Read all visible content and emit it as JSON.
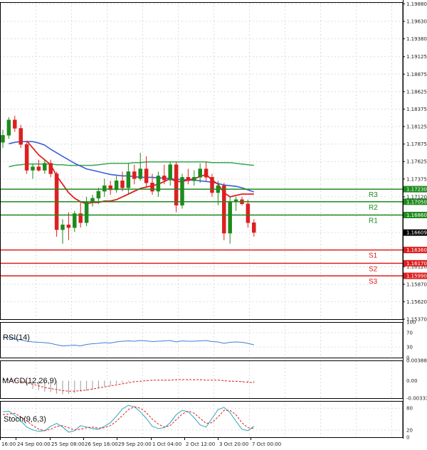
{
  "colors": {
    "grid": "#dcdcdc",
    "axis": "#000000",
    "bull": "#1e8a1e",
    "bear": "#dd1f1f",
    "ma_fast": "#e02020",
    "ma_mid": "#3a5fd8",
    "ma_slow": "#35a84c",
    "resistance": "#1e8a1e",
    "support": "#dd1f1f",
    "current": "#000000",
    "rsi": "#3a7fd8",
    "macd_hist": "#999999",
    "macd_signal": "#dd1f1f",
    "stoch_main": "#2aa7b8",
    "stoch_signal": "#dd1f1f"
  },
  "chart_data": [
    {
      "type": "candlestick",
      "symbol": "EURUSD",
      "ylim": [
        1.1537,
        1.19905
      ],
      "yticks": [
        "1.19880",
        "1.19630",
        "1.19380",
        "1.19125",
        "1.18875",
        "1.18625",
        "1.18375",
        "1.18125",
        "1.17875",
        "1.17625",
        "1.17375",
        "1.17120",
        "1.16870",
        "1.16610",
        "1.16360",
        "1.16120",
        "1.15870",
        "1.15620",
        "1.15370"
      ],
      "x_labels": [
        "16:00",
        "24 Sep 00:00",
        "25 Sep 08:00",
        "26 Sep 16:00",
        "29 Sep 20:00",
        "1 Oct 04:00",
        "2 Oct 12:00",
        "3 Oct 20:00",
        "7 Oct 00:00"
      ],
      "candles": [
        {
          "o": 1.179,
          "h": 1.1808,
          "l": 1.1782,
          "c": 1.18
        },
        {
          "o": 1.18,
          "h": 1.1826,
          "l": 1.1795,
          "c": 1.1822
        },
        {
          "o": 1.1822,
          "h": 1.1828,
          "l": 1.1805,
          "c": 1.181
        },
        {
          "o": 1.181,
          "h": 1.1815,
          "l": 1.1782,
          "c": 1.1787
        },
        {
          "o": 1.1787,
          "h": 1.179,
          "l": 1.1745,
          "c": 1.175
        },
        {
          "o": 1.175,
          "h": 1.176,
          "l": 1.1738,
          "c": 1.1755
        },
        {
          "o": 1.1755,
          "h": 1.1765,
          "l": 1.1748,
          "c": 1.175
        },
        {
          "o": 1.175,
          "h": 1.1766,
          "l": 1.1745,
          "c": 1.176
        },
        {
          "o": 1.176,
          "h": 1.1765,
          "l": 1.174,
          "c": 1.1745
        },
        {
          "o": 1.1745,
          "h": 1.1748,
          "l": 1.1655,
          "c": 1.1665
        },
        {
          "o": 1.1665,
          "h": 1.168,
          "l": 1.1645,
          "c": 1.1672
        },
        {
          "o": 1.1672,
          "h": 1.169,
          "l": 1.165,
          "c": 1.1668
        },
        {
          "o": 1.1668,
          "h": 1.1692,
          "l": 1.1662,
          "c": 1.1688
        },
        {
          "o": 1.1688,
          "h": 1.1705,
          "l": 1.1668,
          "c": 1.1675
        },
        {
          "o": 1.1675,
          "h": 1.1712,
          "l": 1.167,
          "c": 1.1705
        },
        {
          "o": 1.1705,
          "h": 1.1715,
          "l": 1.1698,
          "c": 1.171
        },
        {
          "o": 1.171,
          "h": 1.1725,
          "l": 1.1702,
          "c": 1.172
        },
        {
          "o": 1.172,
          "h": 1.1738,
          "l": 1.1712,
          "c": 1.1728
        },
        {
          "o": 1.1728,
          "h": 1.1735,
          "l": 1.1715,
          "c": 1.1722
        },
        {
          "o": 1.1722,
          "h": 1.1742,
          "l": 1.1718,
          "c": 1.1735
        },
        {
          "o": 1.1735,
          "h": 1.1748,
          "l": 1.172,
          "c": 1.1725
        },
        {
          "o": 1.1725,
          "h": 1.176,
          "l": 1.1715,
          "c": 1.1748
        },
        {
          "o": 1.1748,
          "h": 1.1758,
          "l": 1.173,
          "c": 1.1738
        },
        {
          "o": 1.1738,
          "h": 1.1775,
          "l": 1.1735,
          "c": 1.1752
        },
        {
          "o": 1.1752,
          "h": 1.177,
          "l": 1.1725,
          "c": 1.1732
        },
        {
          "o": 1.1732,
          "h": 1.1745,
          "l": 1.1715,
          "c": 1.172
        },
        {
          "o": 1.172,
          "h": 1.1748,
          "l": 1.1712,
          "c": 1.1742
        },
        {
          "o": 1.1742,
          "h": 1.1758,
          "l": 1.173,
          "c": 1.1736
        },
        {
          "o": 1.1736,
          "h": 1.1762,
          "l": 1.1728,
          "c": 1.1758
        },
        {
          "o": 1.1758,
          "h": 1.1762,
          "l": 1.169,
          "c": 1.17
        },
        {
          "o": 1.17,
          "h": 1.1745,
          "l": 1.1695,
          "c": 1.174
        },
        {
          "o": 1.174,
          "h": 1.1752,
          "l": 1.173,
          "c": 1.1735
        },
        {
          "o": 1.1735,
          "h": 1.175,
          "l": 1.1728,
          "c": 1.174
        },
        {
          "o": 1.174,
          "h": 1.176,
          "l": 1.1732,
          "c": 1.1752
        },
        {
          "o": 1.1752,
          "h": 1.1762,
          "l": 1.1735,
          "c": 1.174
        },
        {
          "o": 1.174,
          "h": 1.1745,
          "l": 1.1712,
          "c": 1.1718
        },
        {
          "o": 1.1718,
          "h": 1.1735,
          "l": 1.17,
          "c": 1.1728
        },
        {
          "o": 1.1728,
          "h": 1.1732,
          "l": 1.165,
          "c": 1.166
        },
        {
          "o": 1.166,
          "h": 1.1712,
          "l": 1.1645,
          "c": 1.1705
        },
        {
          "o": 1.1705,
          "h": 1.1712,
          "l": 1.1692,
          "c": 1.1708
        },
        {
          "o": 1.1708,
          "h": 1.1712,
          "l": 1.17,
          "c": 1.1702
        },
        {
          "o": 1.1702,
          "h": 1.1708,
          "l": 1.1668,
          "c": 1.1675
        },
        {
          "o": 1.1675,
          "h": 1.168,
          "l": 1.1655,
          "c": 1.1661
        }
      ],
      "ma_fast": [
        null,
        null,
        null,
        null,
        1.1792,
        1.1782,
        1.1772,
        1.1765,
        1.1758,
        1.1742,
        1.173,
        1.1718,
        1.171,
        1.1705,
        1.1702,
        1.1704,
        1.1704,
        1.1706,
        1.1706,
        1.1708,
        1.1712,
        1.1716,
        1.172,
        1.1724,
        1.1726,
        1.1728,
        1.173,
        1.1734,
        1.1738,
        1.1734,
        1.1734,
        1.1736,
        1.1738,
        1.1741,
        1.1744,
        1.1736,
        1.173,
        1.1718,
        1.1712,
        1.1714,
        1.1716,
        1.1716,
        1.1716
      ],
      "ma_mid": [
        null,
        1.1788,
        1.179,
        1.1791,
        1.1791,
        1.1791,
        1.1789,
        1.1786,
        1.178,
        1.1775,
        1.177,
        1.1765,
        1.176,
        1.1756,
        1.1752,
        1.175,
        1.1748,
        1.1746,
        1.1744,
        1.1743,
        1.1742,
        1.1742,
        1.1741,
        1.174,
        1.174,
        1.174,
        1.1739,
        1.1739,
        1.1738,
        1.1737,
        1.1737,
        1.1736,
        1.1736,
        1.1735,
        1.1734,
        1.1733,
        1.1731,
        1.1729,
        1.1728,
        1.1727,
        1.1725,
        1.1722,
        1.1719
      ],
      "ma_slow": [
        null,
        1.1755,
        1.1757,
        1.1758,
        1.1759,
        1.1759,
        1.1759,
        1.1759,
        1.1759,
        1.1758,
        1.1758,
        1.1757,
        1.1757,
        1.1757,
        1.1757,
        1.1757,
        1.1758,
        1.1759,
        1.176,
        1.176,
        1.176,
        1.176,
        1.1761,
        1.1761,
        1.1762,
        1.1762,
        1.1762,
        1.1762,
        1.1762,
        1.1762,
        1.1762,
        1.1762,
        1.1762,
        1.1762,
        1.1762,
        1.1761,
        1.1761,
        1.1761,
        1.1761,
        1.176,
        1.1759,
        1.1758,
        1.1757
      ],
      "current_price": "1.16609",
      "levels": [
        {
          "name": "R3",
          "value": 1.1723,
          "label": "1.17230",
          "kind": "resistance"
        },
        {
          "name": "R2",
          "value": 1.1705,
          "label": "1.17050",
          "kind": "resistance"
        },
        {
          "name": "R1",
          "value": 1.1686,
          "label": "1.16860",
          "kind": "resistance"
        },
        {
          "name": "S1",
          "value": 1.1636,
          "label": "1.16360",
          "kind": "support"
        },
        {
          "name": "S2",
          "value": 1.1617,
          "label": "1.16170",
          "kind": "support"
        },
        {
          "name": "S3",
          "value": 1.1599,
          "label": "1.15990",
          "kind": "support"
        }
      ]
    },
    {
      "type": "line",
      "title": "RSI(14)",
      "ylim": [
        0,
        100
      ],
      "yticks": [
        "100",
        "70",
        "30",
        "0"
      ],
      "values": [
        58,
        57,
        52,
        50,
        46,
        44,
        43,
        42,
        40,
        36,
        33,
        34,
        35,
        33,
        37,
        39,
        40,
        42,
        41,
        44,
        46,
        47,
        46,
        48,
        47,
        45,
        46,
        47,
        48,
        44,
        47,
        46,
        46,
        47,
        48,
        45,
        44,
        40,
        43,
        44,
        43,
        40,
        36
      ]
    },
    {
      "type": "histogram",
      "title": "MACD(12,26,9)",
      "ylim": [
        -0.003335,
        0.00388
      ],
      "yticks": [
        "0.00388",
        "0.00",
        "-0.003335"
      ],
      "histogram": [
        0,
        0.0001,
        0.0001,
        -0.0004,
        -0.001,
        -0.0016,
        -0.0018,
        -0.0021,
        -0.0022,
        -0.0025,
        -0.0026,
        -0.0025,
        -0.0024,
        -0.0021,
        -0.0019,
        -0.0017,
        -0.0014,
        -0.0011,
        -0.0009,
        -0.0006,
        -0.0004,
        -0.0002,
        -0.0001,
        0,
        0.0001,
        0.0001,
        0.0001,
        0.0001,
        0.0001,
        0.0001,
        0.0001,
        0.0001,
        0.0001,
        0.0001,
        0.0,
        0.0,
        0.0,
        -0.0001,
        -0.0002,
        -0.0002,
        -0.0002,
        -0.0003,
        -0.0004
      ],
      "signal": [
        0.0002,
        0.0002,
        0.0001,
        -0.0001,
        -0.0004,
        -0.0007,
        -0.001,
        -0.0013,
        -0.0015,
        -0.0017,
        -0.0019,
        -0.002,
        -0.002,
        -0.0019,
        -0.0018,
        -0.0016,
        -0.0014,
        -0.0012,
        -0.001,
        -0.0008,
        -0.0006,
        -0.0004,
        -0.0002,
        -0.0001,
        0.0,
        0.0001,
        0.0001,
        0.0001,
        0.0001,
        0.0002,
        0.0002,
        0.0002,
        0.0002,
        0.0002,
        0.0001,
        0.0001,
        0.0001,
        0.0,
        -0.0001,
        -0.0001,
        -0.0002,
        -0.0003,
        -0.0004
      ]
    },
    {
      "type": "line",
      "title": "Stoch(9,6,3)",
      "ylim": [
        0,
        100
      ],
      "yticks": [
        "80",
        "20",
        "0"
      ],
      "main": [
        70,
        72,
        60,
        45,
        28,
        20,
        16,
        18,
        30,
        38,
        28,
        14,
        18,
        32,
        28,
        24,
        22,
        30,
        40,
        58,
        78,
        88,
        84,
        70,
        52,
        30,
        24,
        26,
        40,
        62,
        74,
        70,
        54,
        34,
        28,
        52,
        76,
        82,
        68,
        44,
        22,
        18,
        30
      ],
      "signal": [
        62,
        64,
        66,
        56,
        45,
        32,
        22,
        18,
        22,
        30,
        32,
        26,
        20,
        22,
        26,
        28,
        25,
        26,
        32,
        44,
        60,
        76,
        84,
        80,
        68,
        50,
        36,
        28,
        32,
        48,
        64,
        72,
        66,
        52,
        38,
        40,
        56,
        74,
        74,
        62,
        40,
        26,
        24
      ]
    }
  ]
}
